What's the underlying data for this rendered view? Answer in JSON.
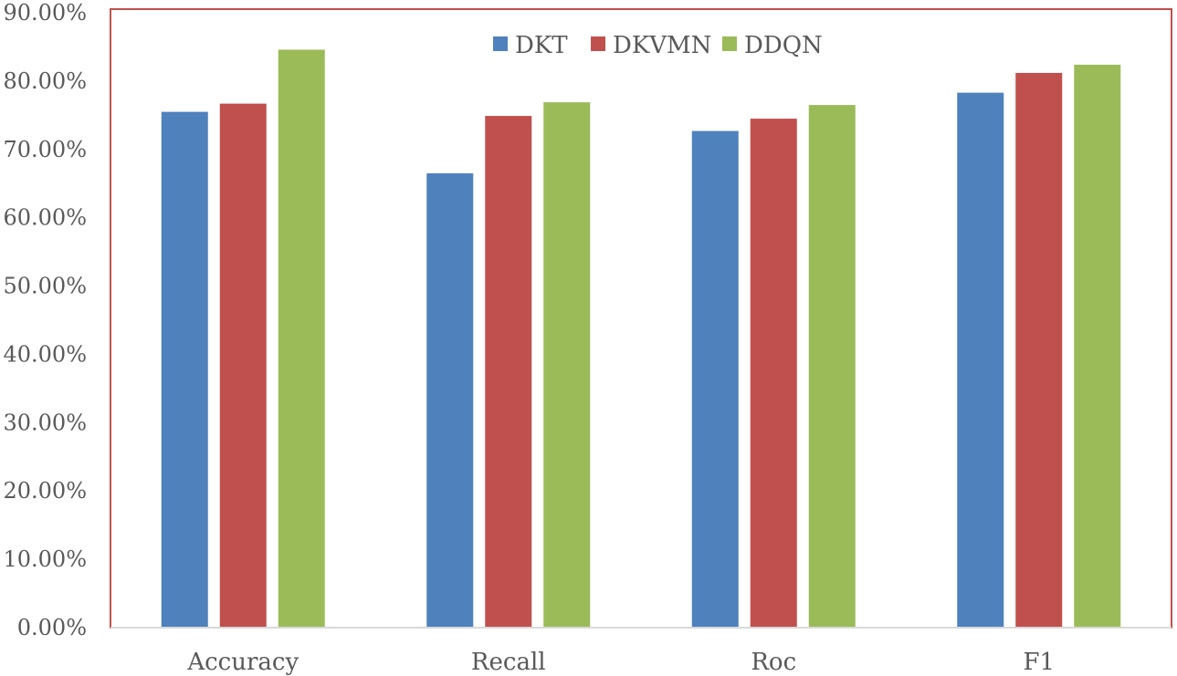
{
  "chart_data": {
    "type": "bar",
    "title": "",
    "xlabel": "",
    "ylabel": "",
    "categories": [
      "Accuracy",
      "Recall",
      "Roc",
      "F1"
    ],
    "series": [
      {
        "name": "DKT",
        "color": "#4F81BD",
        "values": [
          0.755,
          0.665,
          0.727,
          0.783
        ]
      },
      {
        "name": "DKVMN",
        "color": "#C0504D",
        "values": [
          0.767,
          0.749,
          0.745,
          0.812
        ]
      },
      {
        "name": "DDQN",
        "color": "#9BBB59",
        "values": [
          0.846,
          0.769,
          0.765,
          0.824
        ]
      }
    ],
    "ylim": [
      0,
      0.9
    ],
    "yticks": [
      0,
      0.1,
      0.2,
      0.3,
      0.4,
      0.5,
      0.6,
      0.7,
      0.8,
      0.9
    ],
    "ytick_labels": [
      "0.00%",
      "10.00%",
      "20.00%",
      "30.00%",
      "40.00%",
      "50.00%",
      "60.00%",
      "70.00%",
      "80.00%",
      "90.00%"
    ],
    "grid": false,
    "legend_position": "top-center",
    "frame_color": "#C0504D",
    "axis_color": "#D9D9D9"
  }
}
